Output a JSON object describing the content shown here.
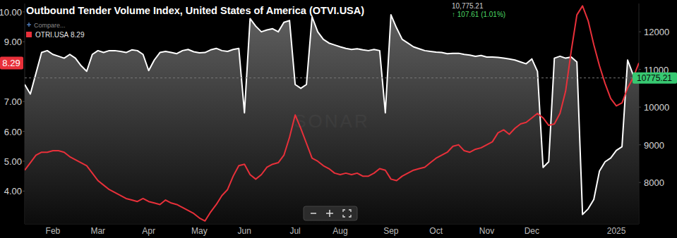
{
  "chart_data": {
    "type": "line",
    "title": "Outbound Tender Volume Index, United States of America (OTVI.USA)",
    "header_value": "10,775.21",
    "header_change": "↑ 107.61 (1.01%)",
    "compare_label": "Compare...",
    "watermark": "SONAR",
    "legend": "top-left",
    "grid": false,
    "categories": [
      null,
      null,
      null,
      null,
      null,
      "Feb",
      null,
      null,
      null,
      null,
      null,
      null,
      null,
      "Mar",
      null,
      null,
      null,
      null,
      null,
      null,
      null,
      null,
      "Apr",
      null,
      null,
      null,
      null,
      null,
      null,
      null,
      null,
      "May",
      null,
      null,
      null,
      null,
      null,
      null,
      null,
      "Jun",
      null,
      null,
      null,
      null,
      null,
      null,
      null,
      null,
      "Jul",
      null,
      null,
      null,
      null,
      null,
      null,
      null,
      "Aug",
      null,
      null,
      null,
      null,
      null,
      null,
      null,
      null,
      "Sep",
      null,
      null,
      null,
      null,
      null,
      null,
      null,
      "Oct",
      null,
      null,
      null,
      null,
      null,
      null,
      null,
      null,
      "Nov",
      null,
      null,
      null,
      null,
      null,
      null,
      null,
      "Dec",
      null,
      null,
      null,
      null,
      null,
      null,
      null,
      null,
      null,
      null,
      null,
      null,
      null,
      null,
      "2025",
      null,
      null,
      null,
      null
    ],
    "series": [
      {
        "name": "OTRI.USA",
        "color": "#e8303a",
        "values": [
          4.7,
          4.95,
          5.2,
          5.3,
          5.3,
          5.35,
          5.35,
          5.3,
          5.15,
          5.05,
          4.95,
          4.85,
          4.6,
          4.35,
          4.2,
          4.05,
          3.95,
          3.85,
          3.75,
          3.7,
          3.65,
          3.75,
          3.65,
          3.6,
          3.55,
          3.7,
          3.6,
          3.55,
          3.45,
          3.35,
          3.25,
          3.1,
          3.0,
          3.3,
          3.55,
          3.85,
          4.05,
          4.5,
          4.85,
          4.9,
          4.55,
          4.4,
          4.55,
          4.8,
          4.9,
          4.95,
          5.2,
          5.8,
          6.55,
          6.1,
          5.6,
          5.1,
          5.0,
          4.85,
          4.75,
          4.6,
          4.55,
          4.6,
          4.55,
          4.6,
          4.5,
          4.5,
          4.6,
          4.75,
          4.7,
          4.4,
          4.35,
          4.5,
          4.6,
          4.7,
          4.75,
          4.8,
          4.95,
          5.1,
          5.2,
          5.3,
          5.5,
          5.55,
          5.35,
          5.3,
          5.4,
          5.45,
          5.55,
          5.65,
          5.95,
          6.05,
          5.9,
          6.1,
          6.25,
          6.3,
          6.45,
          6.6,
          6.45,
          6.2,
          6.25,
          6.6,
          7.35,
          8.7,
          9.9,
          10.2,
          9.7,
          8.9,
          8.2,
          7.6,
          7.1,
          6.85,
          6.95,
          7.45,
          7.8,
          8.29
        ]
      },
      {
        "color": "#ffffff",
        "axis": "y2",
        "type": "area",
        "values": [
          10600,
          10350,
          10900,
          11450,
          11500,
          11400,
          11350,
          11300,
          11400,
          11300,
          11100,
          10950,
          11400,
          11500,
          11450,
          11500,
          11500,
          11480,
          11450,
          11520,
          11500,
          11400,
          10970,
          11250,
          11450,
          11480,
          11450,
          11420,
          11500,
          11530,
          11470,
          11440,
          11450,
          11520,
          11560,
          11500,
          11480,
          11530,
          11560,
          9850,
          12350,
          12150,
          12000,
          12050,
          12080,
          12000,
          12250,
          12300,
          10600,
          10500,
          10600,
          12400,
          12000,
          11800,
          11700,
          11650,
          11600,
          11560,
          11530,
          11550,
          11520,
          11500,
          11530,
          11500,
          9850,
          12450,
          12100,
          11800,
          11700,
          11600,
          11550,
          11500,
          11480,
          11460,
          11450,
          11420,
          11430,
          11430,
          11400,
          11380,
          11350,
          11370,
          11330,
          11330,
          11320,
          11300,
          11280,
          11250,
          11200,
          11150,
          11280,
          10950,
          8400,
          8550,
          11300,
          11350,
          11300,
          11330,
          11200,
          7150,
          7300,
          7550,
          8300,
          8550,
          8650,
          8850,
          8950,
          11250,
          10850,
          10775.21
        ]
      }
    ],
    "ylim": [
      2.9,
      10.28
    ],
    "yticks": [
      {
        "value": 4,
        "label": "4.00"
      },
      {
        "value": 5,
        "label": "5.00"
      },
      {
        "value": 6,
        "label": "6.00"
      },
      {
        "value": 7,
        "label": "7.00"
      },
      {
        "value": 9,
        "label": "9.00"
      },
      {
        "value": 10,
        "label": "10.00"
      }
    ],
    "y2lim": [
      6900,
      12750
    ],
    "y2ticks": [
      8000,
      9000,
      10000,
      11000,
      12000
    ]
  }
}
